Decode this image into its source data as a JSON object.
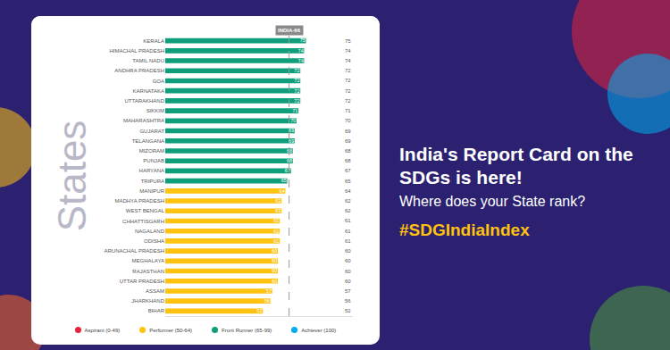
{
  "chart_data": {
    "type": "bar",
    "orientation": "horizontal",
    "ylabel": "States",
    "categories": [
      "KERALA",
      "HIMACHAL PRADESH",
      "TAMIL NADU",
      "ANDHRA PRADESH",
      "GOA",
      "KARNATAKA",
      "UTTARAKHAND",
      "SIKKIM",
      "MAHARASHTRA",
      "GUJARAT",
      "TELANGANA",
      "MIZORAM",
      "PUNJAB",
      "HARYANA",
      "TRIPURA",
      "MANIPUR",
      "MADHYA PRADESH",
      "WEST BENGAL",
      "CHHATTISGARH",
      "NAGALAND",
      "ODISHA",
      "ARUNACHAL PRADESH",
      "MEGHALAYA",
      "RAJASTHAN",
      "UTTAR PRADESH",
      "ASSAM",
      "JHARKHAND",
      "BIHAR"
    ],
    "values": [
      75,
      74,
      74,
      72,
      72,
      72,
      72,
      71,
      70,
      69,
      69,
      68,
      68,
      67,
      65,
      64,
      62,
      62,
      61,
      61,
      61,
      60,
      60,
      60,
      60,
      57,
      56,
      52
    ],
    "colors": [
      "#0e9e7a",
      "#0e9e7a",
      "#0e9e7a",
      "#0e9e7a",
      "#0e9e7a",
      "#0e9e7a",
      "#0e9e7a",
      "#0e9e7a",
      "#0e9e7a",
      "#0e9e7a",
      "#0e9e7a",
      "#0e9e7a",
      "#0e9e7a",
      "#0e9e7a",
      "#0e9e7a",
      "#ffc20e",
      "#ffc20e",
      "#ffc20e",
      "#ffc20e",
      "#ffc20e",
      "#ffc20e",
      "#ffc20e",
      "#ffc20e",
      "#ffc20e",
      "#ffc20e",
      "#ffc20e",
      "#ffc20e",
      "#ffc20e"
    ],
    "data_labels": true,
    "xlim": [
      0,
      100
    ],
    "xticks": [],
    "tick_labels": "y",
    "grid": false,
    "reference_line": {
      "value": 66,
      "label": "INDIA-66"
    },
    "legend_items": [
      {
        "name": "Aspirant (0-49)",
        "color": "#e5243b"
      },
      {
        "name": "Performer (50-64)",
        "color": "#ffc20e"
      },
      {
        "name": "Front Runner (65-99)",
        "color": "#0e9e7a"
      },
      {
        "name": "Achiever (100)",
        "color": "#00aeef"
      }
    ]
  },
  "side_text": {
    "headline": "India's Report Card on the SDGs is here!",
    "subheadline": "Where does your State rank?",
    "hashtag": "#SDGIndiaIndex"
  }
}
